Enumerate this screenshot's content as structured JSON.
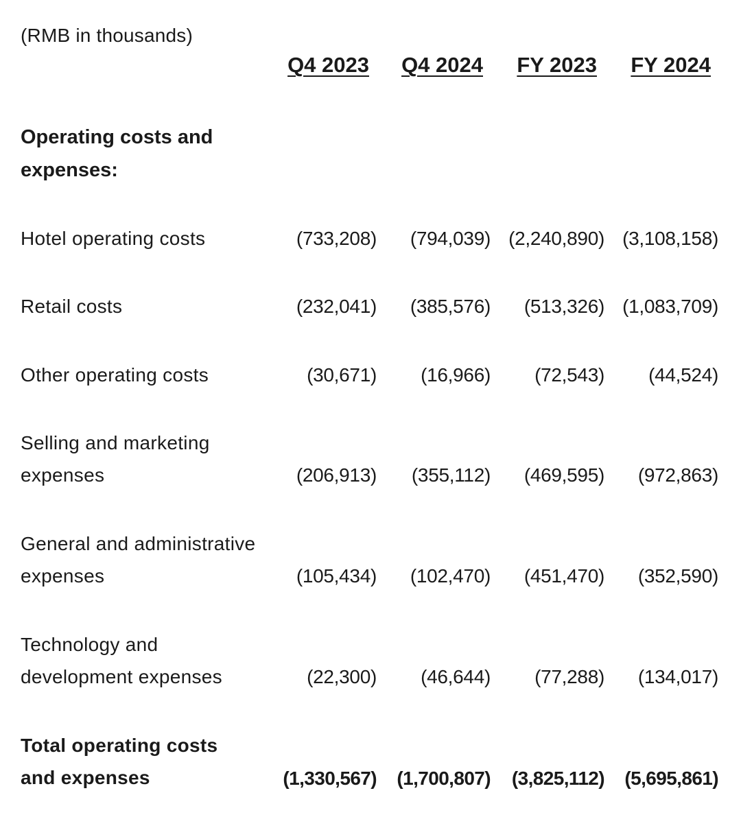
{
  "unit_note": "(RMB in thousands)",
  "columns": [
    "Q4 2023",
    "Q4 2024",
    "FY 2023",
    "FY 2024"
  ],
  "section_title": "Operating costs and expenses:",
  "rows": [
    {
      "label": "Hotel operating costs",
      "values": [
        "(733,208)",
        "(794,039)",
        "(2,240,890)",
        "(3,108,158)"
      ]
    },
    {
      "label": "Retail costs",
      "values": [
        "(232,041)",
        "(385,576)",
        "(513,326)",
        "(1,083,709)"
      ]
    },
    {
      "label": "Other operating costs",
      "values": [
        "(30,671)",
        "(16,966)",
        "(72,543)",
        "(44,524)"
      ]
    },
    {
      "label": "Selling and marketing expenses",
      "values": [
        "(206,913)",
        "(355,112)",
        "(469,595)",
        "(972,863)"
      ]
    },
    {
      "label": "General and administrative expenses",
      "values": [
        "(105,434)",
        "(102,470)",
        "(451,470)",
        "(352,590)"
      ]
    },
    {
      "label": "Technology and development expenses",
      "values": [
        "(22,300)",
        "(46,644)",
        "(77,288)",
        "(134,017)"
      ]
    }
  ],
  "total": {
    "label": "Total operating costs and expenses",
    "values": [
      "(1,330,567)",
      "(1,700,807)",
      "(3,825,112)",
      "(5,695,861)"
    ]
  }
}
